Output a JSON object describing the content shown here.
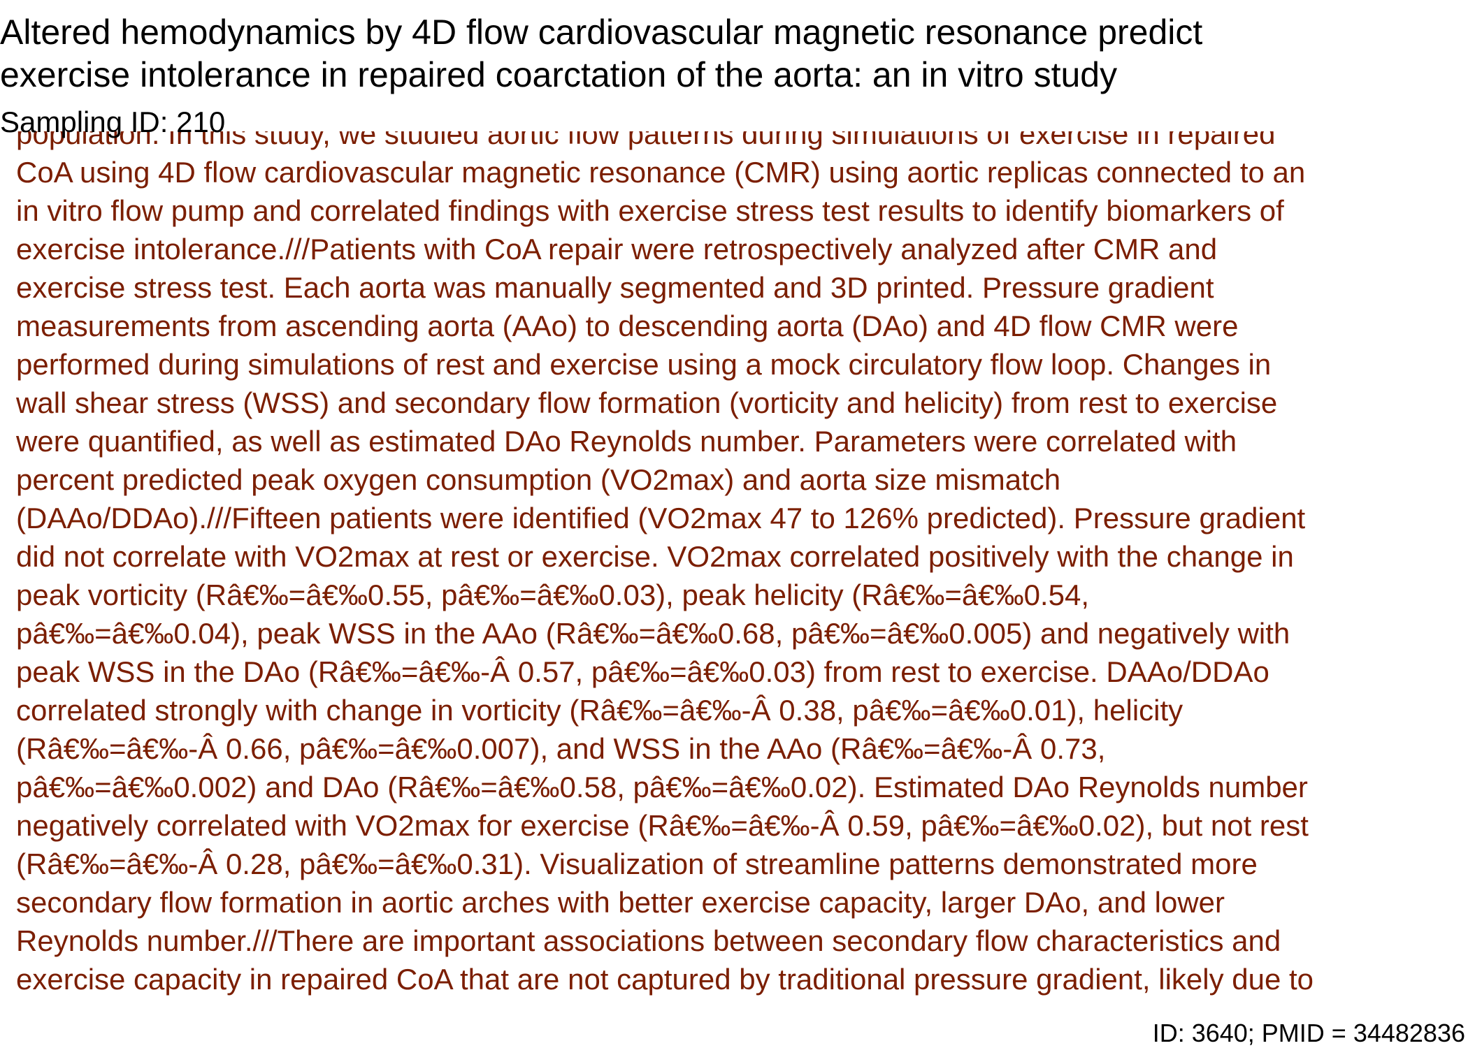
{
  "document": {
    "title": "Altered hemodynamics by 4D flow cardiovascular magnetic resonance predict\nexercise intolerance in repaired coarctation of the aorta: an in vitro study",
    "sampling_id": "Sampling ID: 210",
    "abstract": "population. In this study, we studied aortic flow patterns during simulations of exercise in repaired\nCoA using 4D flow cardiovascular magnetic resonance (CMR) using aortic replicas connected to an\nin vitro flow pump and correlated findings with exercise stress test results to identify biomarkers of\nexercise intolerance.///Patients with CoA repair were retrospectively analyzed after CMR and\nexercise stress test. Each aorta was manually segmented and 3D printed. Pressure gradient\nmeasurements from ascending aorta (AAo) to descending aorta (DAo) and 4D flow CMR were\nperformed during simulations of rest and exercise using a mock circulatory flow loop. Changes in\nwall shear stress (WSS) and secondary flow formation (vorticity and helicity) from rest to exercise\nwere quantified, as well as estimated DAo Reynolds number. Parameters were correlated with\npercent predicted peak oxygen consumption (VO2max) and aorta size mismatch\n(DAAo/DDAo).///Fifteen patients were identified (VO2max 47 to 126% predicted). Pressure gradient\ndid not correlate with VO2max at rest or exercise. VO2max correlated positively with the change in\npeak vorticity (Râ€‰=â€‰0.55, pâ€‰=â€‰0.03), peak helicity (Râ€‰=â€‰0.54,\npâ€‰=â€‰0.04), peak WSS in the AAo (Râ€‰=â€‰0.68, pâ€‰=â€‰0.005) and negatively with\npeak WSS in the DAo (Râ€‰=â€‰-Â 0.57, pâ€‰=â€‰0.03) from rest to exercise. DAAo/DDAo\ncorrelated strongly with change in vorticity (Râ€‰=â€‰-Â 0.38, pâ€‰=â€‰0.01), helicity\n(Râ€‰=â€‰-Â 0.66, pâ€‰=â€‰0.007), and WSS in the AAo (Râ€‰=â€‰-Â 0.73,\npâ€‰=â€‰0.002) and DAo (Râ€‰=â€‰0.58, pâ€‰=â€‰0.02). Estimated DAo Reynolds number\nnegatively correlated with VO2max for exercise (Râ€‰=â€‰-Â 0.59, pâ€‰=â€‰0.02), but not rest\n(Râ€‰=â€‰-Â 0.28, pâ€‰=â€‰0.31). Visualization of streamline patterns demonstrated more\nsecondary flow formation in aortic arches with better exercise capacity, larger DAo, and lower\nReynolds number.///There are important associations between secondary flow characteristics and\nexercise capacity in repaired CoA that are not captured by traditional pressure gradient, likely due to",
    "footer_id": "ID: 3640; PMID = 34482836"
  }
}
